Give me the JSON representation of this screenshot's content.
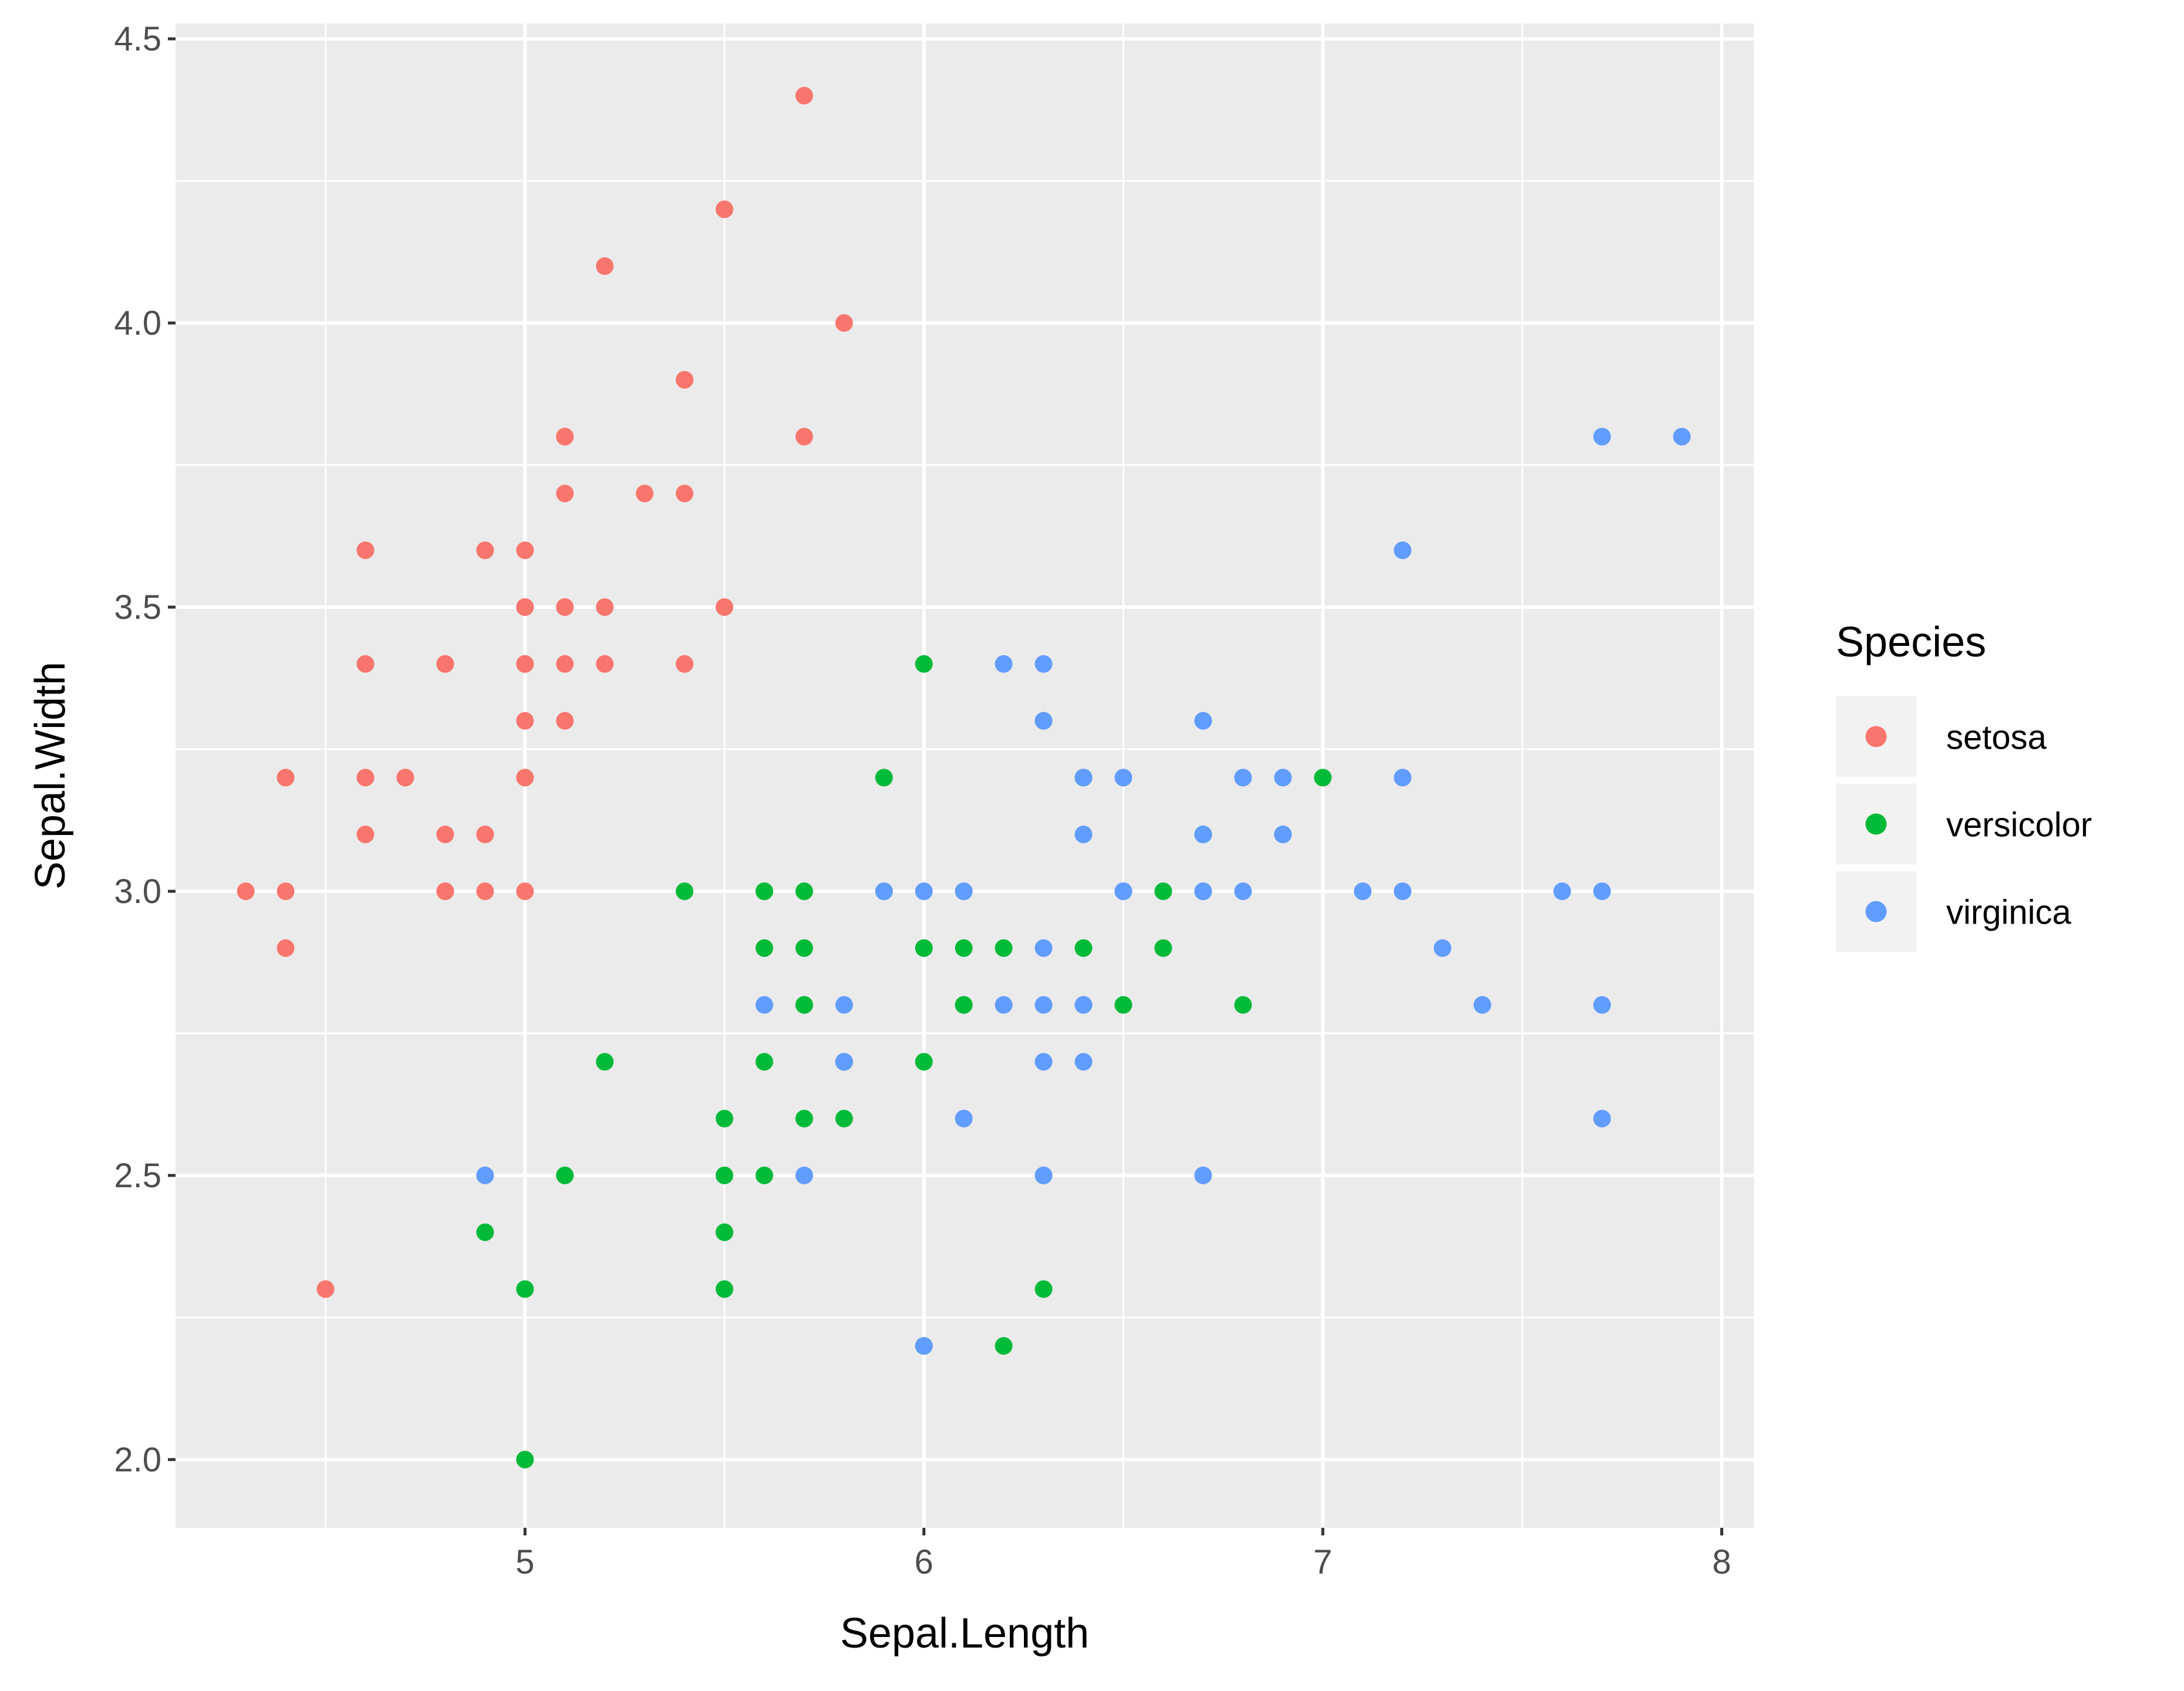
{
  "chart_data": {
    "type": "scatter",
    "title": "",
    "xlabel": "Sepal.Length",
    "ylabel": "Sepal.Width",
    "xlim": [
      4.124,
      8.08
    ],
    "ylim": [
      1.88,
      4.527
    ],
    "x_ticks": [
      5,
      6,
      7,
      8
    ],
    "x_tick_labels": [
      "5",
      "6",
      "7",
      "8"
    ],
    "y_ticks": [
      2.0,
      2.5,
      3.0,
      3.5,
      4.0,
      4.5
    ],
    "y_tick_labels": [
      "2.0",
      "2.5",
      "3.0",
      "3.5",
      "4.0",
      "4.5"
    ],
    "grid": true,
    "legend_position": "right",
    "legend": {
      "title": "Species",
      "entries": [
        {
          "label": "setosa",
          "color": "#F8766D"
        },
        {
          "label": "versicolor",
          "color": "#00BA38"
        },
        {
          "label": "virginica",
          "color": "#619CFF"
        }
      ]
    },
    "series": [
      {
        "name": "setosa",
        "color": "#F8766D",
        "x": [
          5.1,
          4.9,
          4.7,
          4.6,
          5.0,
          5.4,
          4.6,
          5.0,
          4.4,
          4.9,
          5.4,
          4.8,
          4.8,
          4.3,
          5.8,
          5.7,
          5.4,
          5.1,
          5.7,
          5.1,
          5.4,
          5.1,
          4.6,
          5.1,
          4.8,
          5.0,
          5.0,
          5.2,
          5.2,
          4.7,
          4.8,
          5.4,
          5.2,
          5.5,
          4.9,
          5.0,
          5.5,
          4.9,
          4.4,
          5.1,
          5.0,
          4.5,
          4.4,
          5.0,
          5.1,
          4.8,
          5.1,
          4.6,
          5.3,
          5.0
        ],
        "y": [
          3.5,
          3.0,
          3.2,
          3.1,
          3.6,
          3.9,
          3.4,
          3.4,
          2.9,
          3.1,
          3.7,
          3.4,
          3.0,
          3.0,
          4.0,
          4.4,
          3.9,
          3.5,
          3.8,
          3.8,
          3.4,
          3.7,
          3.6,
          3.3,
          3.4,
          3.0,
          3.4,
          3.5,
          3.4,
          3.2,
          3.1,
          3.4,
          4.1,
          4.2,
          3.1,
          3.2,
          3.5,
          3.6,
          3.0,
          3.4,
          3.5,
          2.3,
          3.2,
          3.5,
          3.8,
          3.0,
          3.8,
          3.2,
          3.7,
          3.3
        ]
      },
      {
        "name": "versicolor",
        "color": "#00BA38",
        "x": [
          7.0,
          6.4,
          6.9,
          5.5,
          6.5,
          5.7,
          6.3,
          4.9,
          6.6,
          5.2,
          5.0,
          5.9,
          6.0,
          6.1,
          5.6,
          6.7,
          5.6,
          5.8,
          6.2,
          5.6,
          5.9,
          6.1,
          6.3,
          6.1,
          6.4,
          6.6,
          6.8,
          6.7,
          6.0,
          5.7,
          5.5,
          5.5,
          5.8,
          6.0,
          5.4,
          6.0,
          6.7,
          6.3,
          5.6,
          5.5,
          5.5,
          6.1,
          5.8,
          5.0,
          5.6,
          5.7,
          5.7,
          6.2,
          5.1,
          5.7
        ],
        "y": [
          3.2,
          3.2,
          3.1,
          2.3,
          2.8,
          2.8,
          3.3,
          2.4,
          2.9,
          2.7,
          2.0,
          3.0,
          2.2,
          2.9,
          2.9,
          3.1,
          3.0,
          2.7,
          2.2,
          2.5,
          3.2,
          2.8,
          2.5,
          2.8,
          2.9,
          3.0,
          2.8,
          3.0,
          2.9,
          2.6,
          2.4,
          2.4,
          2.7,
          2.7,
          3.0,
          3.4,
          3.1,
          2.3,
          3.0,
          2.5,
          2.6,
          3.0,
          2.6,
          2.3,
          2.7,
          3.0,
          2.9,
          2.9,
          2.5,
          2.8
        ]
      },
      {
        "name": "virginica",
        "color": "#619CFF",
        "x": [
          6.3,
          5.8,
          7.1,
          6.3,
          6.5,
          7.6,
          4.9,
          7.3,
          6.7,
          7.2,
          6.5,
          6.4,
          6.8,
          5.7,
          5.8,
          6.4,
          6.5,
          7.7,
          7.7,
          6.0,
          6.9,
          5.6,
          7.7,
          6.3,
          6.7,
          7.2,
          6.2,
          6.1,
          6.4,
          7.2,
          7.4,
          7.9,
          6.4,
          6.3,
          6.1,
          7.7,
          6.3,
          6.4,
          6.0,
          6.9,
          6.7,
          6.9,
          5.8,
          6.8,
          6.7,
          6.7,
          6.3,
          6.5,
          6.2,
          5.9
        ],
        "y": [
          3.3,
          2.7,
          3.0,
          2.9,
          3.0,
          3.0,
          2.5,
          2.9,
          2.5,
          3.6,
          3.2,
          2.7,
          3.0,
          2.5,
          2.8,
          3.2,
          3.0,
          3.8,
          2.6,
          2.2,
          3.2,
          2.8,
          2.8,
          2.7,
          3.3,
          3.2,
          2.8,
          3.0,
          2.8,
          3.0,
          2.8,
          3.8,
          2.8,
          2.8,
          2.6,
          3.0,
          3.4,
          3.1,
          3.0,
          3.1,
          3.1,
          3.1,
          2.7,
          3.2,
          3.3,
          3.0,
          2.5,
          3.0,
          3.4,
          3.0
        ]
      }
    ]
  },
  "theme": {
    "panel_background": "#EBEBEB",
    "grid_major": "#FFFFFF",
    "legend_key_background": "#F2F2F2"
  }
}
